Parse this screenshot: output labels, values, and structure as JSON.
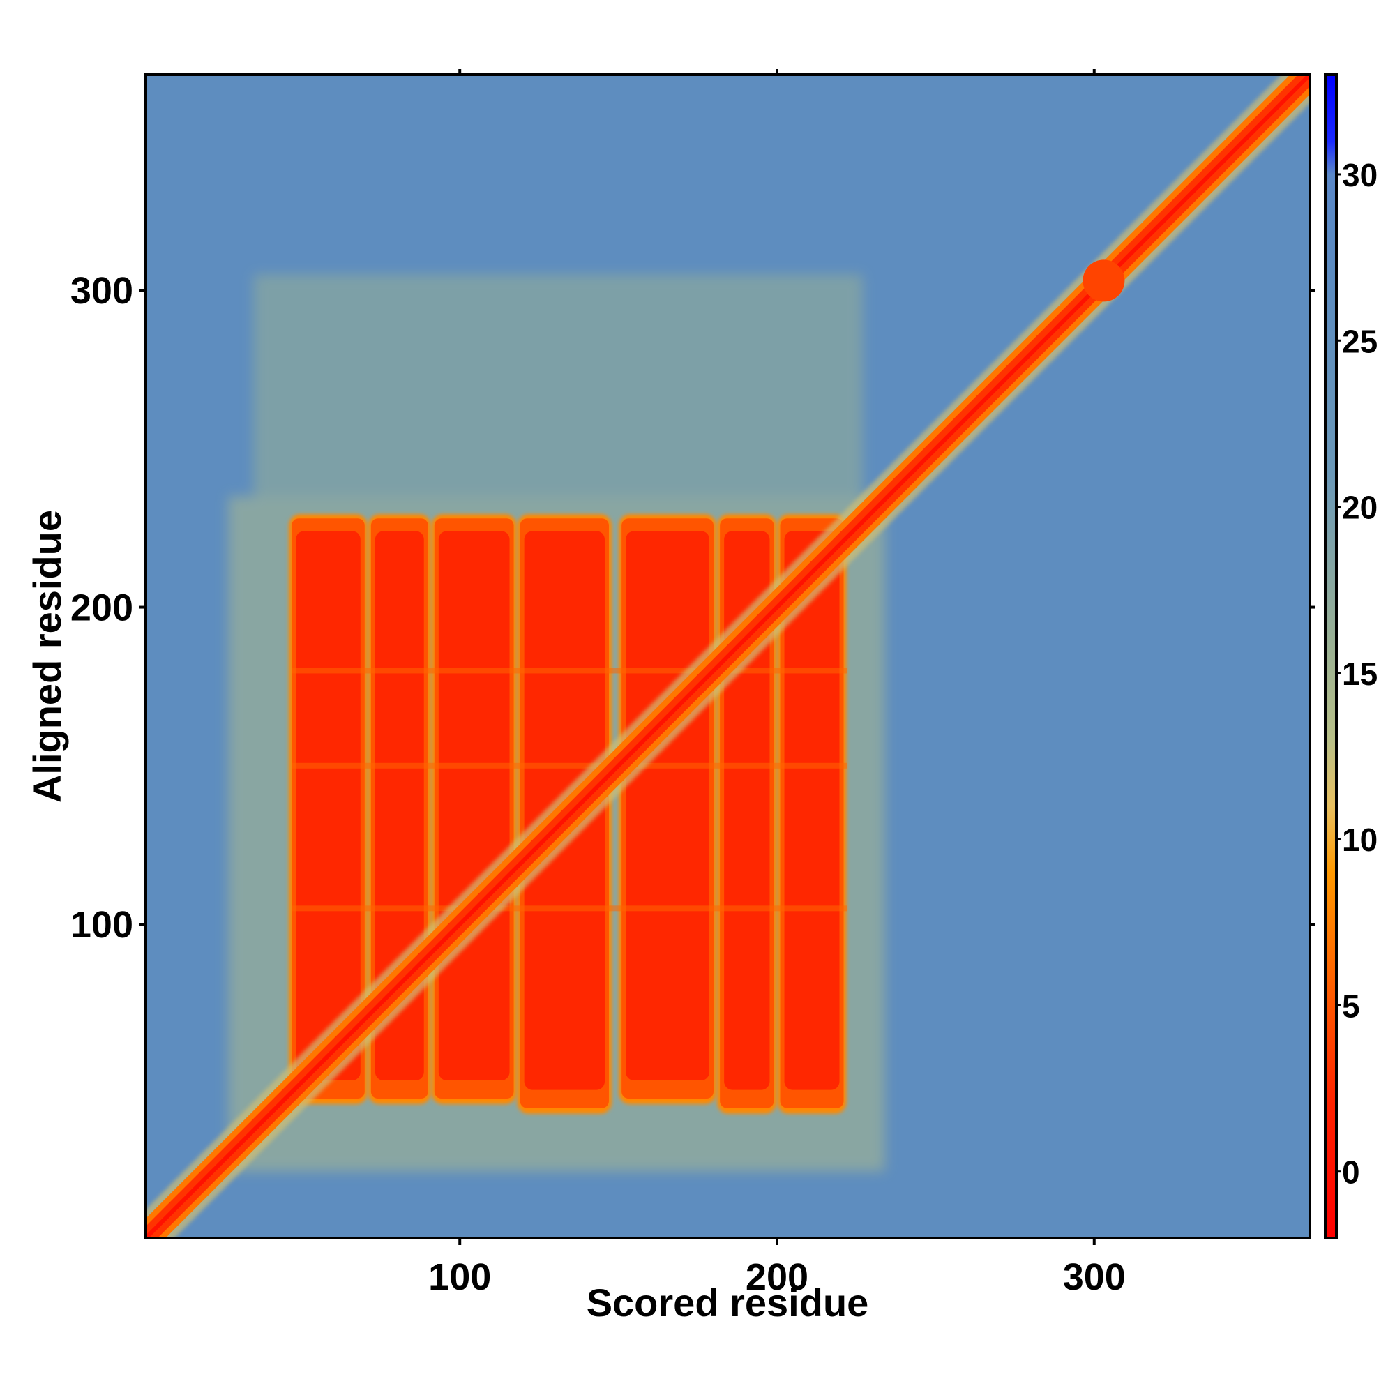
{
  "chart_data": {
    "type": "heatmap",
    "xlabel": "Scored residue",
    "ylabel": "Aligned residue",
    "xlim": [
      1,
      368
    ],
    "ylim": [
      1,
      368
    ],
    "x_ticks": [
      100,
      200,
      300
    ],
    "y_ticks": [
      100,
      200,
      300
    ],
    "colorbar": {
      "range": [
        -2,
        33
      ],
      "ticks": [
        0,
        5,
        10,
        15,
        20,
        25,
        30
      ],
      "stops": [
        {
          "value": -2,
          "color": "#ff0000"
        },
        {
          "value": 2,
          "color": "#ff2200"
        },
        {
          "value": 5,
          "color": "#ff5500"
        },
        {
          "value": 9,
          "color": "#ff9900"
        },
        {
          "value": 11,
          "color": "#e8c060"
        },
        {
          "value": 13,
          "color": "#b8c088"
        },
        {
          "value": 16,
          "color": "#98b094"
        },
        {
          "value": 21,
          "color": "#6a98b8"
        },
        {
          "value": 27,
          "color": "#5b8bc0"
        },
        {
          "value": 30,
          "color": "#5a88c8"
        },
        {
          "value": 31,
          "color": "#1a2aff"
        },
        {
          "value": 33,
          "color": "#0000ff"
        }
      ]
    },
    "background_level": 26,
    "diagonal": {
      "from": 1,
      "to": 368,
      "value": 0,
      "halfwidth": 5
    },
    "block_region": {
      "x_range": [
        47,
        222
      ],
      "y_range": [
        40,
        230
      ],
      "value": 2
    },
    "block_columns": [
      {
        "x": [
          47,
          70
        ],
        "y": [
          45,
          228
        ]
      },
      {
        "x": [
          72,
          90
        ],
        "y": [
          45,
          228
        ]
      },
      {
        "x": [
          92,
          117
        ],
        "y": [
          45,
          228
        ]
      },
      {
        "x": [
          119,
          147
        ],
        "y": [
          42,
          228
        ]
      },
      {
        "x": [
          151,
          180
        ],
        "y": [
          45,
          228
        ]
      },
      {
        "x": [
          182,
          199
        ],
        "y": [
          42,
          228
        ]
      },
      {
        "x": [
          201,
          221
        ],
        "y": [
          42,
          228
        ]
      }
    ],
    "grid": false,
    "legend": "colorbar-right"
  }
}
